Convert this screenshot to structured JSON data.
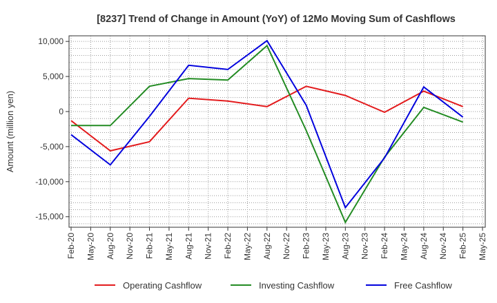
{
  "chart_data": {
    "type": "line",
    "title": "[8237]  Trend of Change in Amount (YoY) of 12Mo Moving Sum of Cashflows",
    "ylabel": "Amount (million yen)",
    "xlabel": "",
    "ylim": [
      -16500,
      10800
    ],
    "yticks": [
      10000,
      5000,
      0,
      -5000,
      -10000,
      -15000
    ],
    "ytick_labels": [
      "10,000",
      "5,000",
      "0",
      "-5,000",
      "-10,000",
      "-15,000"
    ],
    "x_tick_labels": [
      "Feb-20",
      "May-20",
      "Aug-20",
      "Nov-20",
      "Feb-21",
      "May-21",
      "Aug-21",
      "Nov-21",
      "Feb-22",
      "May-22",
      "Aug-22",
      "Nov-22",
      "Feb-23",
      "May-23",
      "Aug-23",
      "Nov-23",
      "Feb-24",
      "May-24",
      "Aug-24",
      "Nov-24",
      "Feb-25",
      "May-25"
    ],
    "grid": true,
    "legend_position": "bottom",
    "series": [
      {
        "name": "Operating Cashflow",
        "color": "#e31a1c",
        "points": [
          [
            0,
            -1300
          ],
          [
            2,
            -5600
          ],
          [
            4,
            -4300
          ],
          [
            6,
            1900
          ],
          [
            8,
            1500
          ],
          [
            10,
            700
          ],
          [
            12,
            3600
          ],
          [
            14,
            2300
          ],
          [
            16,
            -100
          ],
          [
            18,
            2900
          ],
          [
            20,
            700
          ]
        ]
      },
      {
        "name": "Investing Cashflow",
        "color": "#228b22",
        "points": [
          [
            0,
            -2000
          ],
          [
            2,
            -2000
          ],
          [
            4,
            3600
          ],
          [
            6,
            4700
          ],
          [
            8,
            4500
          ],
          [
            10,
            9400
          ],
          [
            12,
            -2700
          ],
          [
            14,
            -15800
          ],
          [
            16,
            -6500
          ],
          [
            18,
            600
          ],
          [
            20,
            -1500
          ]
        ]
      },
      {
        "name": "Free Cashflow",
        "color": "#0000dd",
        "points": [
          [
            0,
            -3300
          ],
          [
            2,
            -7600
          ],
          [
            4,
            -700
          ],
          [
            6,
            6600
          ],
          [
            8,
            6000
          ],
          [
            10,
            10100
          ],
          [
            12,
            900
          ],
          [
            14,
            -13700
          ],
          [
            16,
            -6600
          ],
          [
            18,
            3500
          ],
          [
            20,
            -800
          ]
        ]
      }
    ]
  }
}
